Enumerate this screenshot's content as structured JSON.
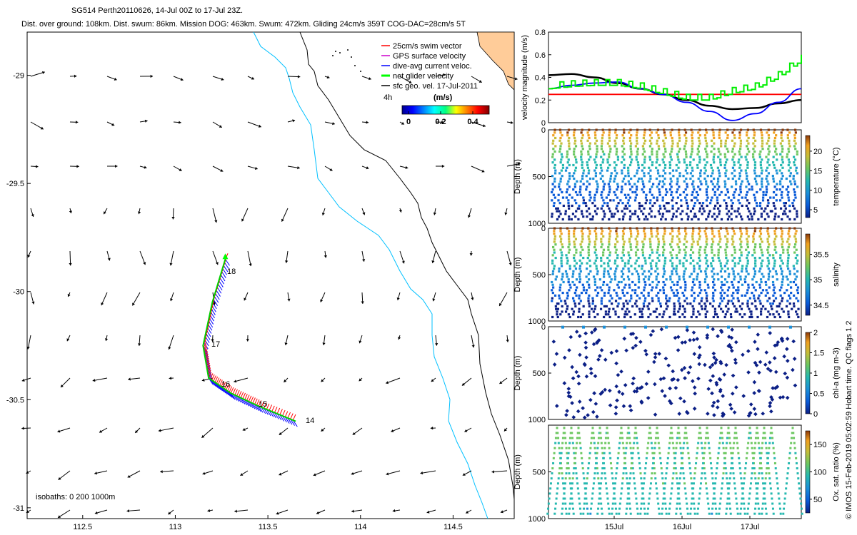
{
  "header": {
    "title_line1": "SG514 Perth20110626, 14-Jul 00Z to 17-Jul 23Z.",
    "title_line2": "Dist. over ground: 108km. Dist. swum: 86km. Mission DOG: 463km. Swum: 472km. Gliding 24cm/s 359T COG-DAC=28cm/s 5T",
    "side_note": "© IMOS 15-Feb-2019 05:02:59 Hobart time. QC flags 1  2"
  },
  "map": {
    "legend": [
      "25cm/s swim vector",
      "GPS surface velocity",
      "dive-avg current veloc.",
      "net glider velocity",
      "sfc geo. vel. 17-Jul-2011"
    ],
    "legend_colors": [
      "#ff0000",
      "#cc00cc",
      "#0000ff",
      "#00ff00",
      "#000000"
    ],
    "time_label": "4h",
    "colorbar_title": "(m/s)",
    "colorbar_ticks": [
      "0",
      "0.2",
      "0.4"
    ],
    "isobaths_label": "isobaths: 0   200  1000m",
    "track_labels": [
      "18",
      "17",
      "16",
      "15",
      "14"
    ]
  },
  "chart_data": [
    {
      "type": "map",
      "xlim": [
        112.2,
        114.83
      ],
      "ylim": [
        -31.05,
        -28.8
      ],
      "xticks": [
        "112.5",
        "113",
        "113.5",
        "114",
        "114.5"
      ],
      "yticks": [
        "-29",
        "-29.5",
        "-30",
        "-30.5",
        "-31"
      ],
      "coast_color": "#000000",
      "isobath_200_color": "#00c0ff",
      "land_color": "#ffcc99",
      "glider_track": [
        [
          113.27,
          -29.85
        ],
        [
          113.2,
          -30.05
        ],
        [
          113.15,
          -30.25
        ],
        [
          113.18,
          -30.4
        ],
        [
          113.3,
          -30.47
        ],
        [
          113.45,
          -30.53
        ],
        [
          113.65,
          -30.6
        ]
      ]
    },
    {
      "type": "line",
      "ylabel": "velocity magnitude (m/s)",
      "ylim": [
        0,
        0.8
      ],
      "yticks": [
        "0",
        "0.2",
        "0.4",
        "0.6",
        "0.8"
      ],
      "series": [
        {
          "color": "#ff0000",
          "values": [
            0.25,
            0.25
          ]
        },
        {
          "color": "#000000",
          "values": [
            0.42,
            0.43,
            0.4,
            0.35,
            0.3,
            0.25,
            0.2,
            0.15,
            0.12,
            0.13,
            0.17,
            0.2
          ]
        },
        {
          "color": "#0000ff",
          "values": [
            0.3,
            0.33,
            0.35,
            0.36,
            0.3,
            0.25,
            0.18,
            0.1,
            0.02,
            0.08,
            0.18,
            0.3
          ]
        },
        {
          "color": "#00ee00",
          "values": [
            0.3,
            0.32,
            0.33,
            0.33,
            0.3,
            0.25,
            0.2,
            0.2,
            0.26,
            0.3,
            0.4,
            0.55
          ]
        }
      ]
    },
    {
      "type": "scatter",
      "ylabel": "Depth (m)",
      "ylim": [
        0,
        1000
      ],
      "yticks": [
        "0",
        "500",
        "1000"
      ],
      "cbar_label": "temperature (°C)",
      "cbar_ticks": [
        "5",
        "10",
        "15",
        "20"
      ],
      "cbar_range": [
        3,
        24
      ]
    },
    {
      "type": "scatter",
      "ylabel": "Depth (m)",
      "ylim": [
        0,
        1000
      ],
      "yticks": [
        "0",
        "500",
        "1000"
      ],
      "cbar_label": "salinity",
      "cbar_ticks": [
        "34.5",
        "35",
        "35.5"
      ],
      "cbar_range": [
        34.3,
        35.9
      ]
    },
    {
      "type": "scatter",
      "ylabel": "Depth (m)",
      "ylim": [
        0,
        1000
      ],
      "yticks": [
        "0",
        "500",
        "1000"
      ],
      "cbar_label": "chl-a (mg m-3)",
      "cbar_ticks": [
        "0",
        "0.5",
        "1",
        "1.5",
        "2"
      ],
      "cbar_range": [
        0,
        2
      ]
    },
    {
      "type": "scatter",
      "ylabel": "Depth (m)",
      "ylim": [
        0,
        1000
      ],
      "yticks": [
        "500",
        "1000"
      ],
      "cbar_label": "Ox. sat. ratio (%)",
      "cbar_ticks": [
        "50",
        "100",
        "150"
      ],
      "cbar_range": [
        25,
        175
      ],
      "xticks": [
        "15Jul",
        "16Jul",
        "17Jul"
      ]
    }
  ]
}
